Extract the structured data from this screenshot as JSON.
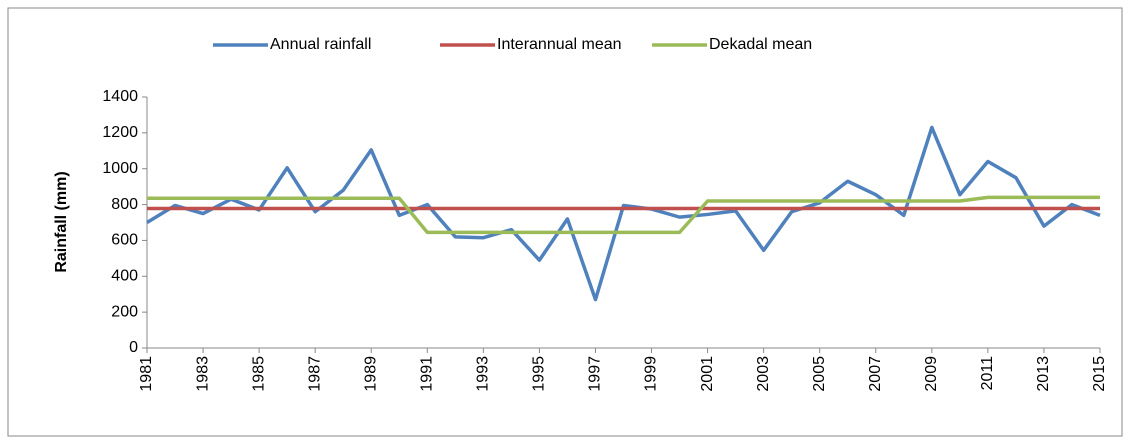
{
  "chart_data": {
    "type": "line",
    "ylabel": "Rainfall (mm)",
    "x": [
      1981,
      1982,
      1983,
      1984,
      1985,
      1986,
      1987,
      1988,
      1989,
      1990,
      1991,
      1992,
      1993,
      1994,
      1995,
      1996,
      1997,
      1998,
      1999,
      2000,
      2001,
      2002,
      2003,
      2004,
      2005,
      2006,
      2007,
      2008,
      2009,
      2010,
      2011,
      2012,
      2013,
      2014,
      2015
    ],
    "xlim": [
      1981,
      2015
    ],
    "xticks": [
      1981,
      1983,
      1985,
      1987,
      1989,
      1991,
      1993,
      1995,
      1997,
      1999,
      2001,
      2003,
      2005,
      2007,
      2009,
      2011,
      2013,
      2015
    ],
    "ylim": [
      0,
      1400
    ],
    "yticks": [
      0,
      200,
      400,
      600,
      800,
      1000,
      1200,
      1400
    ],
    "grid": false,
    "legend": "top",
    "series": [
      {
        "name": "Annual rainfall",
        "color": "#4f81bd",
        "values": [
          700,
          795,
          750,
          830,
          770,
          1005,
          760,
          880,
          1105,
          740,
          800,
          620,
          615,
          660,
          490,
          720,
          270,
          795,
          775,
          730,
          745,
          765,
          545,
          760,
          810,
          930,
          855,
          740,
          1230,
          855,
          1040,
          950,
          680,
          800,
          740
        ]
      },
      {
        "name": "Interannual mean",
        "color": "#c0504d",
        "values": [
          778,
          778,
          778,
          778,
          778,
          778,
          778,
          778,
          778,
          778,
          778,
          778,
          778,
          778,
          778,
          778,
          778,
          778,
          778,
          778,
          778,
          778,
          778,
          778,
          778,
          778,
          778,
          778,
          778,
          778,
          778,
          778,
          778,
          778,
          778
        ]
      },
      {
        "name": "Dekadal mean",
        "color": "#9bbb59",
        "values": [
          835,
          835,
          835,
          835,
          835,
          835,
          835,
          835,
          835,
          835,
          645,
          645,
          645,
          645,
          645,
          645,
          645,
          645,
          645,
          645,
          820,
          820,
          820,
          820,
          820,
          820,
          820,
          820,
          820,
          820,
          840,
          840,
          840,
          840,
          840
        ]
      }
    ]
  }
}
